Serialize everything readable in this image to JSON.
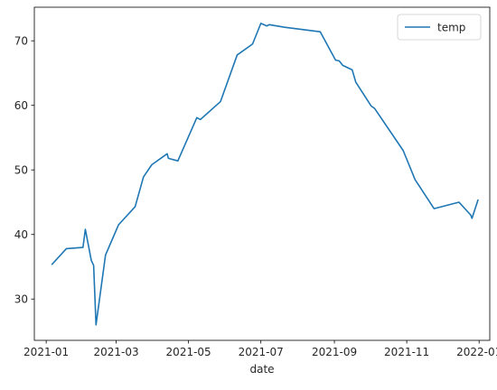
{
  "chart_data": {
    "type": "line",
    "title": "",
    "xlabel": "date",
    "ylabel": "",
    "grid": false,
    "legend_position": "top-right",
    "xlim": [
      "2020-12-22",
      "2022-01-10"
    ],
    "ylim": [
      23.6,
      75.2
    ],
    "x_ticks": [
      {
        "date": "2021-01-01",
        "label": "2021-01"
      },
      {
        "date": "2021-03-01",
        "label": "2021-03"
      },
      {
        "date": "2021-05-01",
        "label": "2021-05"
      },
      {
        "date": "2021-07-01",
        "label": "2021-07"
      },
      {
        "date": "2021-09-01",
        "label": "2021-09"
      },
      {
        "date": "2021-11-01",
        "label": "2021-11"
      },
      {
        "date": "2022-01-01",
        "label": "2022-01"
      }
    ],
    "y_ticks": [
      30,
      40,
      50,
      60,
      70
    ],
    "series": [
      {
        "name": "temp",
        "color": "#1f77b4",
        "points": [
          {
            "x": "2021-01-06",
            "y": 35.4
          },
          {
            "x": "2021-01-18",
            "y": 37.8
          },
          {
            "x": "2021-02-01",
            "y": 38.0
          },
          {
            "x": "2021-02-03",
            "y": 40.8
          },
          {
            "x": "2021-02-08",
            "y": 36.0
          },
          {
            "x": "2021-02-10",
            "y": 35.2
          },
          {
            "x": "2021-02-12",
            "y": 26.0
          },
          {
            "x": "2021-02-20",
            "y": 36.8
          },
          {
            "x": "2021-03-03",
            "y": 41.5
          },
          {
            "x": "2021-03-17",
            "y": 44.3
          },
          {
            "x": "2021-03-24",
            "y": 48.9
          },
          {
            "x": "2021-03-31",
            "y": 50.8
          },
          {
            "x": "2021-04-13",
            "y": 52.5
          },
          {
            "x": "2021-04-14",
            "y": 51.8
          },
          {
            "x": "2021-04-22",
            "y": 51.4
          },
          {
            "x": "2021-05-08",
            "y": 58.1
          },
          {
            "x": "2021-05-11",
            "y": 57.8
          },
          {
            "x": "2021-05-28",
            "y": 60.6
          },
          {
            "x": "2021-06-11",
            "y": 67.8
          },
          {
            "x": "2021-06-24",
            "y": 69.5
          },
          {
            "x": "2021-07-01",
            "y": 72.7
          },
          {
            "x": "2021-07-06",
            "y": 72.3
          },
          {
            "x": "2021-07-08",
            "y": 72.5
          },
          {
            "x": "2021-07-21",
            "y": 72.1
          },
          {
            "x": "2021-08-20",
            "y": 71.4
          },
          {
            "x": "2021-09-02",
            "y": 67.0
          },
          {
            "x": "2021-09-05",
            "y": 66.9
          },
          {
            "x": "2021-09-08",
            "y": 66.2
          },
          {
            "x": "2021-09-16",
            "y": 65.5
          },
          {
            "x": "2021-09-19",
            "y": 63.6
          },
          {
            "x": "2021-10-02",
            "y": 59.9
          },
          {
            "x": "2021-10-05",
            "y": 59.5
          },
          {
            "x": "2021-10-29",
            "y": 53.0
          },
          {
            "x": "2021-11-08",
            "y": 48.5
          },
          {
            "x": "2021-11-24",
            "y": 44.0
          },
          {
            "x": "2021-12-15",
            "y": 45.0
          },
          {
            "x": "2021-12-25",
            "y": 43.0
          },
          {
            "x": "2021-12-26",
            "y": 42.5
          },
          {
            "x": "2021-12-31",
            "y": 45.3
          }
        ]
      }
    ]
  }
}
